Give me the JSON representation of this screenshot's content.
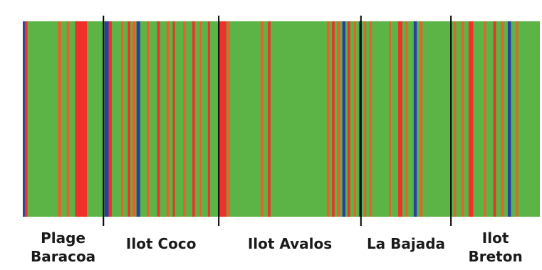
{
  "chart_data": {
    "type": "bar",
    "colors": {
      "background": "#5cb346",
      "red": "#f0302a",
      "orange": "#e8602c",
      "blue": "#2a3fa6",
      "divider": "#000000"
    },
    "sites": [
      {
        "label_lines": [
          "Plage",
          "Baracoa"
        ]
      },
      {
        "label_lines": [
          "Ilot Coco"
        ]
      },
      {
        "label_lines": [
          "Ilot Avalos"
        ]
      },
      {
        "label_lines": [
          "La Bajada"
        ]
      },
      {
        "label_lines": [
          "Ilot",
          "Breton"
        ]
      }
    ],
    "site_boundaries": [
      0.0,
      0.156,
      0.379,
      0.654,
      0.828,
      1.0
    ],
    "bands": [
      {
        "pos": 0.0,
        "w": 0.004,
        "color": "blue"
      },
      {
        "pos": 0.004,
        "w": 0.005,
        "color": "red"
      },
      {
        "pos": 0.068,
        "w": 0.006,
        "color": "orange"
      },
      {
        "pos": 0.085,
        "w": 0.005,
        "color": "orange"
      },
      {
        "pos": 0.101,
        "w": 0.023,
        "color": "red"
      },
      {
        "pos": 0.158,
        "w": 0.008,
        "color": "blue"
      },
      {
        "pos": 0.166,
        "w": 0.006,
        "color": "red"
      },
      {
        "pos": 0.19,
        "w": 0.004,
        "color": "orange"
      },
      {
        "pos": 0.203,
        "w": 0.005,
        "color": "red"
      },
      {
        "pos": 0.212,
        "w": 0.006,
        "color": "orange"
      },
      {
        "pos": 0.22,
        "w": 0.007,
        "color": "blue"
      },
      {
        "pos": 0.24,
        "w": 0.004,
        "color": "orange"
      },
      {
        "pos": 0.26,
        "w": 0.005,
        "color": "red"
      },
      {
        "pos": 0.278,
        "w": 0.005,
        "color": "orange"
      },
      {
        "pos": 0.29,
        "w": 0.004,
        "color": "red"
      },
      {
        "pos": 0.31,
        "w": 0.005,
        "color": "orange"
      },
      {
        "pos": 0.328,
        "w": 0.005,
        "color": "red"
      },
      {
        "pos": 0.342,
        "w": 0.004,
        "color": "orange"
      },
      {
        "pos": 0.358,
        "w": 0.004,
        "color": "red"
      },
      {
        "pos": 0.38,
        "w": 0.014,
        "color": "red"
      },
      {
        "pos": 0.396,
        "w": 0.004,
        "color": "orange"
      },
      {
        "pos": 0.46,
        "w": 0.005,
        "color": "orange"
      },
      {
        "pos": 0.474,
        "w": 0.005,
        "color": "red"
      },
      {
        "pos": 0.588,
        "w": 0.005,
        "color": "orange"
      },
      {
        "pos": 0.598,
        "w": 0.005,
        "color": "red"
      },
      {
        "pos": 0.608,
        "w": 0.006,
        "color": "orange"
      },
      {
        "pos": 0.618,
        "w": 0.006,
        "color": "blue"
      },
      {
        "pos": 0.628,
        "w": 0.005,
        "color": "red"
      },
      {
        "pos": 0.64,
        "w": 0.004,
        "color": "orange"
      },
      {
        "pos": 0.65,
        "w": 0.004,
        "color": "blue"
      },
      {
        "pos": 0.66,
        "w": 0.004,
        "color": "orange"
      },
      {
        "pos": 0.67,
        "w": 0.005,
        "color": "orange"
      },
      {
        "pos": 0.708,
        "w": 0.004,
        "color": "orange"
      },
      {
        "pos": 0.726,
        "w": 0.008,
        "color": "red"
      },
      {
        "pos": 0.74,
        "w": 0.004,
        "color": "orange"
      },
      {
        "pos": 0.756,
        "w": 0.006,
        "color": "blue"
      },
      {
        "pos": 0.768,
        "w": 0.005,
        "color": "orange"
      },
      {
        "pos": 0.834,
        "w": 0.004,
        "color": "orange"
      },
      {
        "pos": 0.848,
        "w": 0.005,
        "color": "orange"
      },
      {
        "pos": 0.862,
        "w": 0.009,
        "color": "red"
      },
      {
        "pos": 0.892,
        "w": 0.004,
        "color": "orange"
      },
      {
        "pos": 0.91,
        "w": 0.005,
        "color": "red"
      },
      {
        "pos": 0.925,
        "w": 0.005,
        "color": "orange"
      },
      {
        "pos": 0.938,
        "w": 0.006,
        "color": "blue"
      },
      {
        "pos": 0.954,
        "w": 0.004,
        "color": "orange"
      }
    ]
  }
}
